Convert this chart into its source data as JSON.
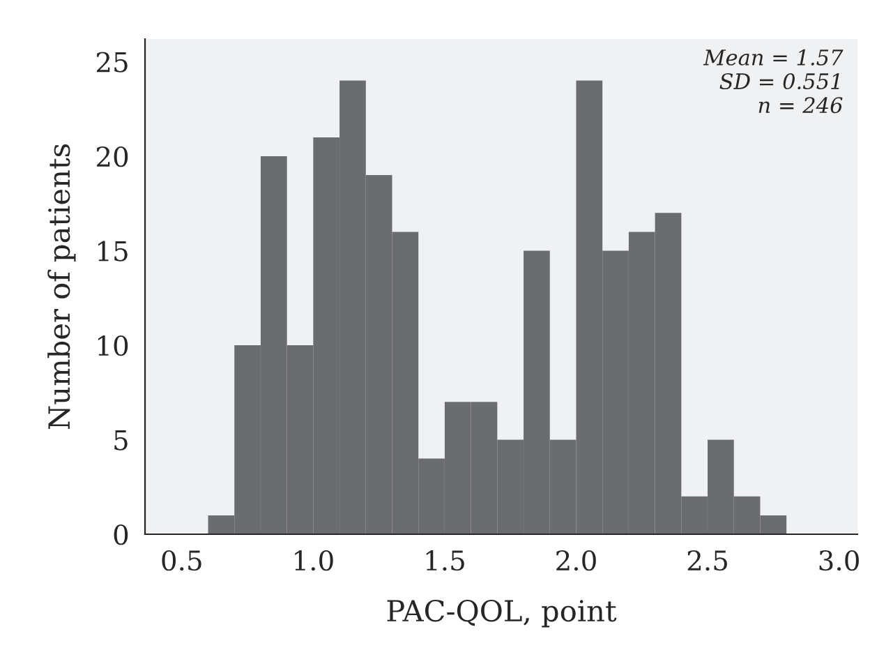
{
  "chart_data": {
    "type": "histogram",
    "xlabel": "PAC-QOL, point",
    "ylabel": "Number of patients",
    "bins": [
      0.6,
      0.7,
      0.8,
      0.9,
      1.0,
      1.1,
      1.2,
      1.3,
      1.4,
      1.5,
      1.6,
      1.7,
      1.8,
      1.9,
      2.0,
      2.1,
      2.2,
      2.3,
      2.4,
      2.5,
      2.6,
      2.7,
      2.8
    ],
    "values": [
      1,
      10,
      20,
      10,
      21,
      24,
      19,
      16,
      4,
      7,
      7,
      5,
      15,
      5,
      24,
      15,
      16,
      17,
      2,
      5,
      2,
      1
    ],
    "color": "#6b6c70",
    "xlim": [
      0.36,
      3.07
    ],
    "xticks": [
      {
        "value": 0.5,
        "label": "0.5"
      },
      {
        "value": 1.0,
        "label": "1.0"
      },
      {
        "value": 1.5,
        "label": "1.5"
      },
      {
        "value": 2.0,
        "label": "2.0"
      },
      {
        "value": 2.5,
        "label": "2.5"
      },
      {
        "value": 3.0,
        "label": "3.0"
      }
    ],
    "ylim": [
      0,
      26.2
    ],
    "yticks": [
      0,
      5,
      10,
      15,
      20,
      25
    ],
    "grid": false,
    "annotations": [
      "Mean = 1.57\nSD = 0.551\nn = 246"
    ]
  }
}
